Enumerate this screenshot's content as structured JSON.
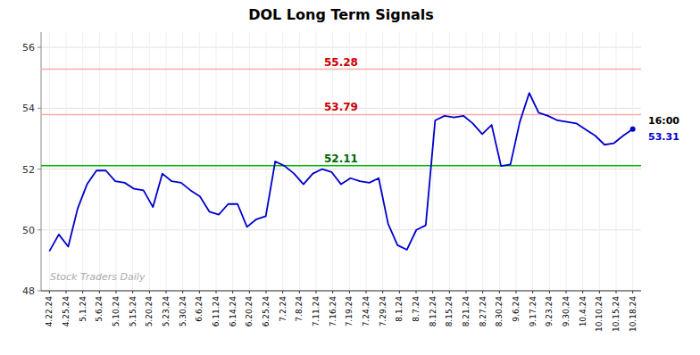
{
  "chart_data": {
    "type": "line",
    "title": "DOL Long Term Signals",
    "x": [
      0,
      0.5645,
      1.129,
      1.6935,
      2.2581,
      2.8226,
      3.3871,
      3.9516,
      4.5161,
      5.0806,
      5.6452,
      6.2097,
      6.7742,
      7.3387,
      7.9032,
      8.4677,
      9.0323,
      9.5968,
      10.1613,
      10.7258,
      11.2903,
      11.8548,
      12.4194,
      12.9839,
      13.5484,
      14.1129,
      14.6774,
      15.2419,
      15.8065,
      16.371,
      16.9355,
      17.5,
      18.0645,
      18.629,
      19.1935,
      19.7581,
      20.3226,
      20.8871,
      21.4516,
      22.0161,
      22.5806,
      23.1452,
      23.7097,
      24.2742,
      24.8387,
      25.4032,
      25.9677,
      26.5323,
      27.0968,
      27.6613,
      28.2258,
      28.7903,
      29.3548,
      29.9194,
      30.4839,
      31.0484,
      31.6129,
      32.1774,
      32.7419,
      33.3065,
      33.871,
      34.4355,
      35
    ],
    "series": [
      {
        "name": "DOL",
        "color": "#0000cc",
        "values": [
          49.3,
          49.85,
          49.45,
          50.7,
          51.5,
          51.95,
          51.95,
          51.6,
          51.55,
          51.35,
          51.3,
          50.75,
          51.85,
          51.6,
          51.55,
          51.3,
          51.1,
          50.6,
          50.5,
          50.85,
          50.85,
          50.1,
          50.35,
          50.45,
          52.25,
          52.1,
          51.85,
          51.5,
          51.85,
          52.0,
          51.9,
          51.5,
          51.7,
          51.6,
          51.55,
          51.7,
          50.2,
          49.5,
          49.35,
          50.0,
          50.15,
          53.6,
          53.75,
          53.7,
          53.75,
          53.5,
          53.15,
          53.45,
          52.1,
          52.15,
          53.55,
          54.5,
          53.85,
          53.75,
          53.6,
          53.55,
          53.5,
          53.3,
          53.1,
          52.8,
          52.85,
          53.1,
          53.31
        ]
      }
    ],
    "xlim": [
      -0.5,
      35.5
    ],
    "xticks": [
      {
        "value": 0,
        "label": "4.22.24"
      },
      {
        "value": 1,
        "label": "4.25.24"
      },
      {
        "value": 2,
        "label": "5.1.24"
      },
      {
        "value": 3,
        "label": "5.6.24"
      },
      {
        "value": 4,
        "label": "5.10.24"
      },
      {
        "value": 5,
        "label": "5.15.24"
      },
      {
        "value": 6,
        "label": "5.20.24"
      },
      {
        "value": 7,
        "label": "5.23.24"
      },
      {
        "value": 8,
        "label": "5.30.24"
      },
      {
        "value": 9,
        "label": "6.6.24"
      },
      {
        "value": 10,
        "label": "6.11.24"
      },
      {
        "value": 11,
        "label": "6.14.24"
      },
      {
        "value": 12,
        "label": "6.20.24"
      },
      {
        "value": 13,
        "label": "6.25.24"
      },
      {
        "value": 14,
        "label": "7.2.24"
      },
      {
        "value": 15,
        "label": "7.8.24"
      },
      {
        "value": 16,
        "label": "7.11.24"
      },
      {
        "value": 17,
        "label": "7.16.24"
      },
      {
        "value": 18,
        "label": "7.19.24"
      },
      {
        "value": 19,
        "label": "7.24.24"
      },
      {
        "value": 20,
        "label": "7.29.24"
      },
      {
        "value": 21,
        "label": "8.1.24"
      },
      {
        "value": 22,
        "label": "8.7.24"
      },
      {
        "value": 23,
        "label": "8.12.24"
      },
      {
        "value": 24,
        "label": "8.15.24"
      },
      {
        "value": 25,
        "label": "8.21.24"
      },
      {
        "value": 26,
        "label": "8.27.24"
      },
      {
        "value": 27,
        "label": "8.30.24"
      },
      {
        "value": 28,
        "label": "9.6.24"
      },
      {
        "value": 29,
        "label": "9.17.24"
      },
      {
        "value": 30,
        "label": "9.23.24"
      },
      {
        "value": 31,
        "label": "9.30.24"
      },
      {
        "value": 32,
        "label": "10.4.24"
      },
      {
        "value": 33,
        "label": "10.10.24"
      },
      {
        "value": 34,
        "label": "10.15.24"
      },
      {
        "value": 35,
        "label": "10.18.24"
      }
    ],
    "ylim": [
      48,
      56.5
    ],
    "yticks": [
      48,
      50,
      52,
      54,
      56
    ],
    "grid": true,
    "hlines": [
      {
        "value": 55.28,
        "label": "55.28",
        "color": "#ffaaaa",
        "label_color": "#cc0000"
      },
      {
        "value": 53.79,
        "label": "53.79",
        "color": "#ffaaaa",
        "label_color": "#cc0000"
      },
      {
        "value": 52.11,
        "label": "52.11",
        "color": "#00bb00",
        "label_color": "#006600"
      }
    ],
    "annotations": [
      {
        "text": "16:00"
      },
      {
        "text": "53.31",
        "value": 53.31
      }
    ],
    "watermark": "Stock Traders Daily"
  }
}
